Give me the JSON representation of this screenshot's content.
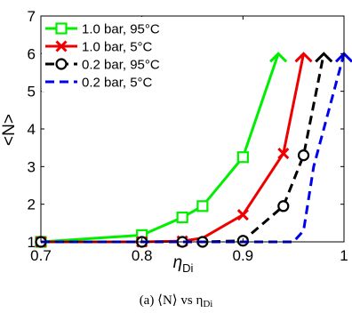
{
  "chart_data": {
    "type": "line",
    "xlabel": "η",
    "xlabel_sub": "Di",
    "ylabel": "<N>",
    "xlim": [
      0.7,
      1.0
    ],
    "ylim": [
      1,
      7
    ],
    "xticks": [
      0.7,
      0.8,
      0.9,
      1.0
    ],
    "xtick_labels": [
      "0.7",
      "0.8",
      "0.9",
      "1"
    ],
    "yticks": [
      1,
      2,
      3,
      4,
      5,
      6,
      7
    ],
    "ytick_labels": [
      "1",
      "2",
      "3",
      "4",
      "5",
      "6",
      "7"
    ],
    "grid": false,
    "legend_position": "top-left",
    "series": [
      {
        "name": "1.0 bar, 95°C",
        "color": "#00ee00",
        "line": "solid",
        "marker": "square",
        "x": [
          0.7,
          0.8,
          0.84,
          0.86,
          0.9,
          0.935
        ],
        "y": [
          1.0,
          1.18,
          1.65,
          1.95,
          3.25,
          6.0
        ],
        "marker_x": [
          0.7,
          0.8,
          0.84,
          0.86,
          0.9
        ],
        "marker_y": [
          1.0,
          1.18,
          1.65,
          1.95,
          3.25
        ]
      },
      {
        "name": "1.0 bar,   5°C",
        "color": "#ee0000",
        "line": "solid",
        "marker": "x",
        "x": [
          0.7,
          0.8,
          0.84,
          0.86,
          0.9,
          0.94,
          0.96
        ],
        "y": [
          1.0,
          1.0,
          1.02,
          1.1,
          1.72,
          3.35,
          6.0
        ],
        "marker_x": [
          0.7,
          0.8,
          0.84,
          0.9,
          0.94
        ],
        "marker_y": [
          1.0,
          1.0,
          1.02,
          1.72,
          3.35
        ]
      },
      {
        "name": "0.2 bar, 95°C",
        "color": "#000000",
        "line": "dashed",
        "marker": "circle",
        "x": [
          0.7,
          0.8,
          0.84,
          0.86,
          0.9,
          0.94,
          0.96,
          0.98
        ],
        "y": [
          1.0,
          1.0,
          1.0,
          1.0,
          1.03,
          1.95,
          3.3,
          6.0
        ],
        "marker_x": [
          0.7,
          0.8,
          0.84,
          0.86,
          0.9,
          0.94,
          0.96
        ],
        "marker_y": [
          1.0,
          1.0,
          1.0,
          1.0,
          1.03,
          1.95,
          3.3
        ]
      },
      {
        "name": "0.2 bar,   5°C",
        "color": "#0000ee",
        "line": "dashed",
        "marker": "none",
        "x": [
          0.7,
          0.9,
          0.95,
          0.96,
          0.97,
          1.0
        ],
        "y": [
          1.0,
          1.0,
          1.0,
          1.3,
          3.0,
          6.0
        ],
        "marker_x": [],
        "marker_y": []
      }
    ]
  },
  "caption": "(a) ⟨N⟩ vs η",
  "caption_sub": "Di"
}
